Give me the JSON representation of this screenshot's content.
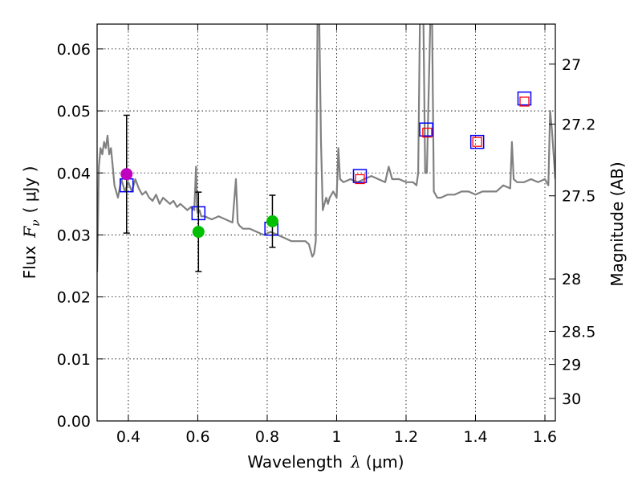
{
  "chart_data": {
    "type": "scatter",
    "xlabel_text": "Wavelength",
    "xlabel_symbol": "λ",
    "xlabel_unit": "(μm)",
    "ylabel_text": "Flux",
    "ylabel_symbol": "F",
    "ylabel_sub": "ν",
    "ylabel_unit": "( μJy )",
    "y2label": "Magnitude (AB)",
    "xlim": [
      0.31,
      1.63
    ],
    "ylim": [
      0.0,
      0.064
    ],
    "grid": true,
    "x_ticks": [
      0.4,
      0.6,
      0.8,
      1.0,
      1.2,
      1.4,
      1.6
    ],
    "x_tick_labels": [
      "0.4",
      "0.6",
      "0.8",
      "1",
      "1.2",
      "1.4",
      "1.6"
    ],
    "y_ticks": [
      0.0,
      0.01,
      0.02,
      0.03,
      0.04,
      0.05,
      0.06
    ],
    "y_tick_labels": [
      "0.00",
      "0.01",
      "0.02",
      "0.03",
      "0.04",
      "0.05",
      "0.06"
    ],
    "y2_ticks": [
      27,
      27.2,
      27.5,
      28,
      28.5,
      29,
      30
    ],
    "y2_tick_labels": [
      "27",
      "27.2",
      "27.5",
      "28",
      "28.5",
      "29",
      "30"
    ],
    "colors": {
      "model": "#808080",
      "model_photometry": "#0000ff",
      "hst_acs": "#bf00bf",
      "hst_wfc3": "#00bf00",
      "ir_points": "#ff0000",
      "errorbar": "#000000"
    },
    "series": [
      {
        "name": "model_spectrum",
        "kind": "line",
        "x": [
          0.31,
          0.315,
          0.32,
          0.325,
          0.33,
          0.335,
          0.34,
          0.345,
          0.35,
          0.355,
          0.36,
          0.37,
          0.38,
          0.39,
          0.4,
          0.41,
          0.42,
          0.43,
          0.44,
          0.45,
          0.46,
          0.47,
          0.48,
          0.49,
          0.5,
          0.51,
          0.52,
          0.53,
          0.54,
          0.55,
          0.56,
          0.57,
          0.58,
          0.59,
          0.595,
          0.598,
          0.6,
          0.605,
          0.61,
          0.62,
          0.64,
          0.66,
          0.68,
          0.7,
          0.71,
          0.715,
          0.72,
          0.73,
          0.75,
          0.77,
          0.79,
          0.81,
          0.83,
          0.85,
          0.87,
          0.89,
          0.91,
          0.92,
          0.93,
          0.935,
          0.94,
          0.945,
          0.95,
          0.955,
          0.96,
          0.965,
          0.97,
          0.975,
          0.98,
          0.99,
          1.0,
          1.005,
          1.01,
          1.02,
          1.04,
          1.06,
          1.08,
          1.1,
          1.12,
          1.14,
          1.15,
          1.16,
          1.18,
          1.2,
          1.22,
          1.23,
          1.235,
          1.24,
          1.25,
          1.255,
          1.26,
          1.27,
          1.275,
          1.28,
          1.29,
          1.3,
          1.32,
          1.34,
          1.36,
          1.38,
          1.4,
          1.42,
          1.44,
          1.46,
          1.48,
          1.5,
          1.505,
          1.51,
          1.52,
          1.54,
          1.56,
          1.58,
          1.6,
          1.61,
          1.615,
          1.62,
          1.63
        ],
        "y": [
          0.024,
          0.041,
          0.044,
          0.043,
          0.045,
          0.044,
          0.046,
          0.043,
          0.044,
          0.041,
          0.038,
          0.036,
          0.039,
          0.037,
          0.0385,
          0.037,
          0.039,
          0.0375,
          0.0365,
          0.037,
          0.036,
          0.0355,
          0.0365,
          0.035,
          0.036,
          0.0355,
          0.035,
          0.0355,
          0.0345,
          0.035,
          0.0345,
          0.034,
          0.0345,
          0.034,
          0.041,
          0.034,
          0.0335,
          0.034,
          0.033,
          0.033,
          0.0325,
          0.033,
          0.0325,
          0.032,
          0.039,
          0.032,
          0.0315,
          0.031,
          0.031,
          0.0305,
          0.03,
          0.0305,
          0.03,
          0.0295,
          0.029,
          0.029,
          0.029,
          0.0285,
          0.0265,
          0.027,
          0.029,
          0.065,
          0.065,
          0.045,
          0.034,
          0.035,
          0.036,
          0.035,
          0.036,
          0.037,
          0.036,
          0.044,
          0.039,
          0.0385,
          0.039,
          0.0385,
          0.039,
          0.0395,
          0.039,
          0.0385,
          0.041,
          0.039,
          0.039,
          0.0385,
          0.0385,
          0.038,
          0.04,
          0.065,
          0.065,
          0.04,
          0.04,
          0.065,
          0.065,
          0.037,
          0.036,
          0.036,
          0.0365,
          0.0365,
          0.037,
          0.037,
          0.0365,
          0.037,
          0.037,
          0.037,
          0.038,
          0.0375,
          0.045,
          0.039,
          0.0385,
          0.0385,
          0.039,
          0.0385,
          0.039,
          0.038,
          0.05,
          0.047,
          0.039
        ]
      },
      {
        "name": "model_photometry",
        "kind": "open_square",
        "x": [
          0.395,
          0.602,
          0.812,
          1.067,
          1.258,
          1.405,
          1.541
        ],
        "y": [
          0.038,
          0.0335,
          0.031,
          0.0395,
          0.047,
          0.045,
          0.052
        ]
      },
      {
        "name": "observed_acs",
        "kind": "filled_circle",
        "x": [
          0.395
        ],
        "y": [
          0.0398
        ],
        "yerr": [
          0.0095
        ]
      },
      {
        "name": "observed_wfc3_uvis",
        "kind": "filled_circle",
        "x": [
          0.602,
          0.815
        ],
        "y": [
          0.0305,
          0.0322
        ],
        "yerr": [
          0.0064,
          0.0042
        ]
      },
      {
        "name": "observed_ir",
        "kind": "small_square",
        "x": [
          1.067,
          1.261,
          1.405,
          1.541
        ],
        "y": [
          0.039,
          0.0465,
          0.045,
          0.0515
        ]
      }
    ]
  }
}
